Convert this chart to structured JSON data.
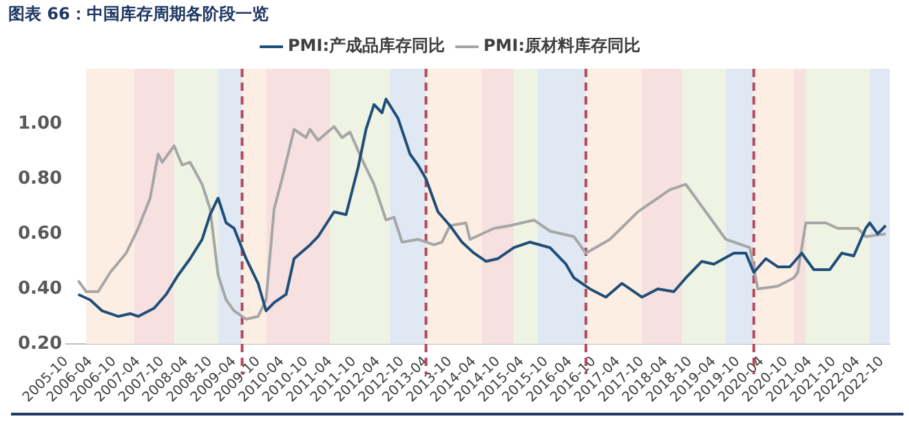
{
  "chart_data": {
    "type": "line",
    "title": "图表 66：中国库存周期各阶段一览",
    "x": [
      "2006-01",
      "2006-04",
      "2006-07",
      "2006-09",
      "2006-11",
      "2007-02",
      "2007-04",
      "2007-08",
      "2007-11",
      "2008-02",
      "2008-05",
      "2008-08",
      "2008-10",
      "2008-12",
      "2009-02",
      "2009-04",
      "2009-07",
      "2009-10",
      "2009-12",
      "2010-02",
      "2010-05",
      "2010-07",
      "2010-11",
      "2011-01",
      "2011-05",
      "2011-08",
      "2011-11",
      "2012-01",
      "2012-03",
      "2012-05",
      "2012-06",
      "2012-09",
      "2012-12",
      "2013-02",
      "2013-04",
      "2013-07",
      "2013-10",
      "2014-01",
      "2014-04",
      "2014-07",
      "2014-10",
      "2015-02",
      "2015-06",
      "2015-11",
      "2016-03",
      "2016-05",
      "2016-09",
      "2017-01",
      "2017-05",
      "2017-10",
      "2018-02",
      "2018-06",
      "2018-09",
      "2019-01",
      "2019-04",
      "2019-09",
      "2019-12",
      "2020-02",
      "2020-05",
      "2020-08",
      "2020-11",
      "2021-02",
      "2021-05",
      "2021-09",
      "2021-12",
      "2022-03",
      "2022-06",
      "2022-07",
      "2022-09",
      "2022-11"
    ],
    "series": [
      {
        "name": "PMI:产成品库存同比",
        "color": "#1f4e79",
        "values": [
          0.38,
          0.36,
          0.32,
          0.31,
          0.3,
          0.31,
          0.3,
          0.33,
          0.38,
          0.45,
          0.51,
          0.58,
          0.67,
          0.73,
          0.64,
          0.62,
          0.51,
          0.42,
          0.32,
          0.35,
          0.38,
          0.51,
          0.56,
          0.59,
          0.68,
          0.67,
          0.84,
          0.98,
          1.07,
          1.04,
          1.09,
          1.02,
          0.89,
          0.85,
          0.8,
          0.68,
          0.63,
          0.57,
          0.53,
          0.5,
          0.51,
          0.55,
          0.57,
          0.55,
          0.49,
          0.44,
          0.4,
          0.37,
          0.42,
          0.37,
          0.4,
          0.39,
          0.44,
          0.5,
          0.49,
          0.53,
          0.53,
          0.46,
          0.51,
          0.48,
          0.48,
          0.53,
          0.47,
          0.47,
          0.53,
          0.52,
          0.62,
          0.64,
          0.6,
          0.63
        ]
      },
      {
        "name": "PMI:原材料库存同比",
        "color": "#a6a6a6",
        "x": [
          "2006-01",
          "2006-03",
          "2006-06",
          "2006-09",
          "2007-01",
          "2007-04",
          "2007-07",
          "2007-09",
          "2007-10",
          "2008-01",
          "2008-03",
          "2008-05",
          "2008-08",
          "2008-10",
          "2008-12",
          "2009-02",
          "2009-04",
          "2009-07",
          "2009-10",
          "2009-12",
          "2010-02",
          "2010-04",
          "2010-07",
          "2010-10",
          "2010-11",
          "2011-01",
          "2011-05",
          "2011-07",
          "2011-09",
          "2011-12",
          "2012-03",
          "2012-06",
          "2012-08",
          "2012-10",
          "2013-02",
          "2013-06",
          "2013-08",
          "2013-10",
          "2014-02",
          "2014-03",
          "2014-09",
          "2015-01",
          "2015-07",
          "2015-11",
          "2016-05",
          "2016-08",
          "2017-02",
          "2017-09",
          "2018-05",
          "2018-09",
          "2019-02",
          "2019-07",
          "2020-01",
          "2020-03",
          "2020-08",
          "2020-12",
          "2021-01",
          "2021-03",
          "2021-08",
          "2021-11",
          "2022-04",
          "2022-06",
          "2022-11"
        ],
        "values": [
          0.43,
          0.39,
          0.39,
          0.46,
          0.53,
          0.62,
          0.73,
          0.89,
          0.86,
          0.92,
          0.85,
          0.86,
          0.78,
          0.69,
          0.45,
          0.36,
          0.32,
          0.29,
          0.3,
          0.36,
          0.69,
          0.8,
          0.98,
          0.95,
          0.98,
          0.94,
          0.99,
          0.95,
          0.97,
          0.87,
          0.78,
          0.65,
          0.66,
          0.57,
          0.58,
          0.56,
          0.57,
          0.63,
          0.64,
          0.58,
          0.62,
          0.63,
          0.65,
          0.61,
          0.59,
          0.53,
          0.58,
          0.68,
          0.76,
          0.78,
          0.68,
          0.58,
          0.55,
          0.4,
          0.41,
          0.44,
          0.46,
          0.64,
          0.64,
          0.62,
          0.62,
          0.59,
          0.6
        ]
      }
    ],
    "xlim": [
      "2005-10",
      "2022-12"
    ],
    "xticks": [
      "2005-10",
      "2006-04",
      "2006-10",
      "2007-04",
      "2007-10",
      "2008-04",
      "2008-10",
      "2009-04",
      "2009-10",
      "2010-04",
      "2010-10",
      "2011-04",
      "2011-10",
      "2012-04",
      "2012-10",
      "2013-04",
      "2013-10",
      "2014-04",
      "2014-10",
      "2015-04",
      "2015-10",
      "2016-04",
      "2016-10",
      "2017-04",
      "2017-10",
      "2018-04",
      "2018-10",
      "2019-04",
      "2019-10",
      "2020-04",
      "2020-10",
      "2021-04",
      "2021-10",
      "2022-04",
      "2022-10"
    ],
    "ylim": [
      0.2,
      1.2
    ],
    "yticks": [
      {
        "value": 0.2,
        "label": "0.20"
      },
      {
        "value": 0.4,
        "label": "0.40"
      },
      {
        "value": 0.6,
        "label": "0.60"
      },
      {
        "value": 0.8,
        "label": "0.80"
      },
      {
        "value": 1.0,
        "label": "1.00"
      }
    ],
    "bands": [
      {
        "axis": "x",
        "from": "2006-03",
        "to": "2007-03",
        "color": "#fdeee4"
      },
      {
        "axis": "x",
        "from": "2007-03",
        "to": "2008-01",
        "color": "#f6e0e0"
      },
      {
        "axis": "x",
        "from": "2008-01",
        "to": "2008-12",
        "color": "#eef3e3"
      },
      {
        "axis": "x",
        "from": "2008-12",
        "to": "2009-06",
        "color": "#dfe8f3"
      },
      {
        "axis": "x",
        "from": "2009-06",
        "to": "2009-12",
        "color": "#fdeee4"
      },
      {
        "axis": "x",
        "from": "2009-12",
        "to": "2011-04",
        "color": "#f6e0e0"
      },
      {
        "axis": "x",
        "from": "2011-04",
        "to": "2012-07",
        "color": "#eef3e3"
      },
      {
        "axis": "x",
        "from": "2012-07",
        "to": "2013-04",
        "color": "#dfe8f3"
      },
      {
        "axis": "x",
        "from": "2013-04",
        "to": "2014-06",
        "color": "#fdeee4"
      },
      {
        "axis": "x",
        "from": "2014-06",
        "to": "2015-02",
        "color": "#f6e0e0"
      },
      {
        "axis": "x",
        "from": "2015-02",
        "to": "2015-08",
        "color": "#eef3e3"
      },
      {
        "axis": "x",
        "from": "2015-08",
        "to": "2016-08",
        "color": "#dfe8f3"
      },
      {
        "axis": "x",
        "from": "2016-08",
        "to": "2017-10",
        "color": "#fdeee4"
      },
      {
        "axis": "x",
        "from": "2017-10",
        "to": "2018-08",
        "color": "#f6e0e0"
      },
      {
        "axis": "x",
        "from": "2018-08",
        "to": "2019-07",
        "color": "#eef3e3"
      },
      {
        "axis": "x",
        "from": "2019-07",
        "to": "2020-02",
        "color": "#dfe8f3"
      },
      {
        "axis": "x",
        "from": "2020-02",
        "to": "2020-12",
        "color": "#fdeee4"
      },
      {
        "axis": "x",
        "from": "2020-12",
        "to": "2021-03",
        "color": "#f6e0e0"
      },
      {
        "axis": "x",
        "from": "2021-03",
        "to": "2022-07",
        "color": "#eef3e3"
      },
      {
        "axis": "x",
        "from": "2022-07",
        "to": "2022-12",
        "color": "#dfe8f3"
      }
    ],
    "ref_lines": [
      {
        "axis": "x",
        "value": "2009-06",
        "color": "#b5485a",
        "line_style": "dashed"
      },
      {
        "axis": "x",
        "value": "2013-04",
        "color": "#b5485a",
        "line_style": "dashed"
      },
      {
        "axis": "x",
        "value": "2016-08",
        "color": "#b5485a",
        "line_style": "dashed"
      },
      {
        "axis": "x",
        "value": "2020-02",
        "color": "#b5485a",
        "line_style": "dashed"
      }
    ],
    "grid": false,
    "legend": "top",
    "marker": "none",
    "line_style": "solid"
  }
}
